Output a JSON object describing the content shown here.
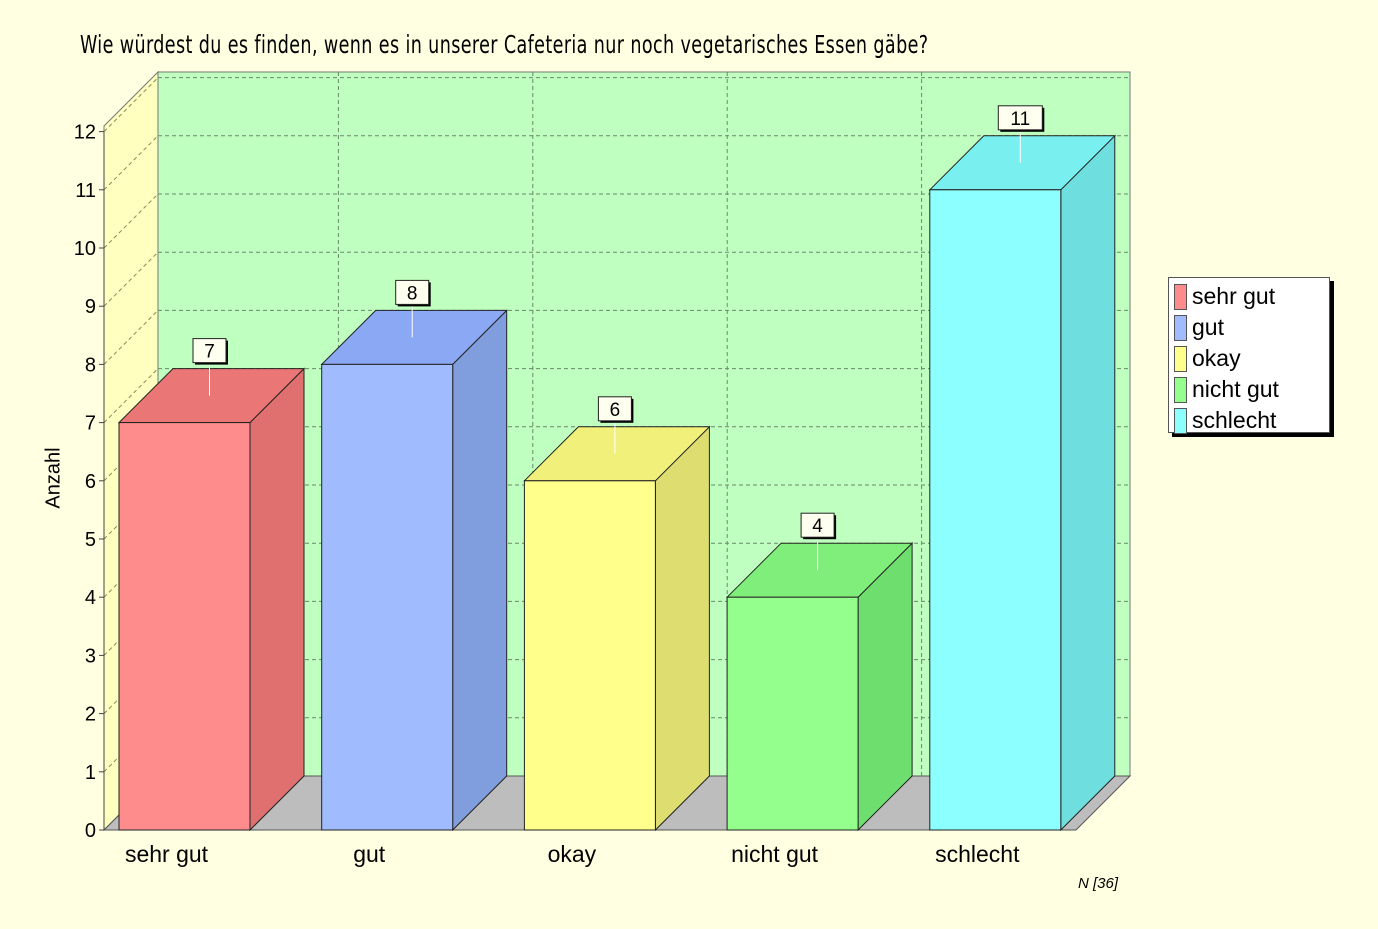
{
  "chart_data": {
    "type": "bar",
    "title": "Wie würdest du es finden, wenn es in unserer Cafeteria nur noch vegetarisches Essen gäbe?",
    "xlabel": "",
    "ylabel": "Anzahl",
    "ylim": [
      0,
      12
    ],
    "yticks": [
      0,
      1,
      2,
      3,
      4,
      5,
      6,
      7,
      8,
      9,
      10,
      11,
      12
    ],
    "categories": [
      "sehr gut",
      "gut",
      "okay",
      "nicht gut",
      "schlecht"
    ],
    "values": [
      7,
      8,
      6,
      4,
      11
    ],
    "colors": [
      "#ff8c8c",
      "#a0bcff",
      "#ffff8c",
      "#94ff8c",
      "#8cffff"
    ],
    "side_colors": [
      "#e07070",
      "#809ede",
      "#dede70",
      "#6ede6e",
      "#6ededf"
    ],
    "top_colors": [
      "#eb7676",
      "#8aa8f4",
      "#f0f07a",
      "#80ee7a",
      "#7aefef"
    ],
    "background_colors": {
      "page": "#ffffe1",
      "back_wall": "#bfffbf",
      "side_wall": "#ffffbf",
      "floor": "#bdbdbd"
    },
    "grid": true,
    "legend_position": "right",
    "legend": [
      "sehr gut",
      "gut",
      "okay",
      "nicht gut",
      "schlecht"
    ],
    "footnote": "N [36]"
  }
}
